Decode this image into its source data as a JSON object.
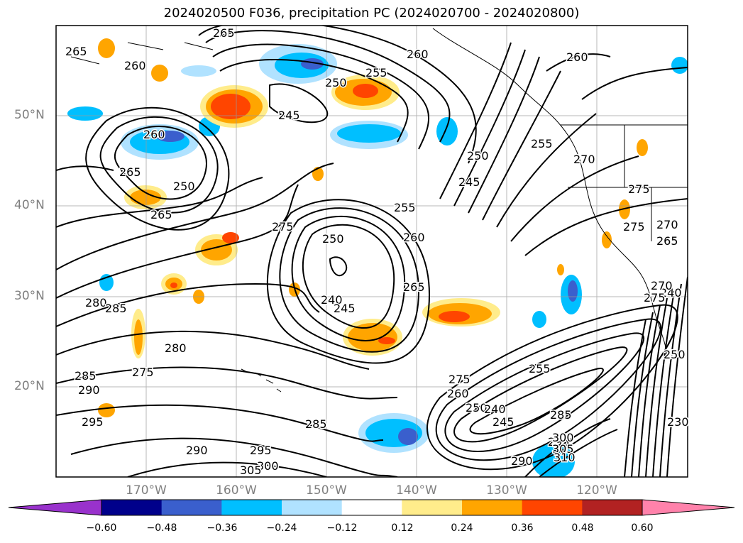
{
  "title": "2024020500 F036, precipitation PC (2024020700 - 2024020800)",
  "lat_labels": [
    "50°N",
    "40°N",
    "30°N",
    "20°N"
  ],
  "lon_labels": [
    "170°W",
    "160°W",
    "150°W",
    "140°W",
    "130°W",
    "120°W"
  ],
  "colorbar": {
    "ticks": [
      "−0.60",
      "−0.48",
      "−0.36",
      "−0.24",
      "−0.12",
      "0.12",
      "0.24",
      "0.36",
      "0.48",
      "0.60"
    ],
    "colors": [
      "#9932cc",
      "#00008b",
      "#3a5fcd",
      "#00bfff",
      "#b0e2ff",
      "#ffffff",
      "#ffec8b",
      "#ffa500",
      "#ff4500",
      "#b22222",
      "#ff82ab"
    ]
  },
  "contour_labels": [
    "265",
    "260",
    "265",
    "250",
    "255",
    "260",
    "260",
    "245",
    "260",
    "255",
    "250",
    "265",
    "265",
    "270",
    "250",
    "245",
    "275",
    "250",
    "255",
    "260",
    "240",
    "245",
    "265",
    "275",
    "270",
    "275",
    "265",
    "280",
    "280",
    "285",
    "290",
    "295",
    "275",
    "285",
    "285",
    "290",
    "295",
    "300",
    "305",
    "275",
    "255",
    "260",
    "250",
    "240",
    "245",
    "285",
    "290",
    "295",
    "300",
    "305",
    "310",
    "240",
    "230",
    "250",
    "270",
    "275"
  ],
  "map_extent": {
    "lon_min": -180,
    "lon_max": -110,
    "lat_min": 10,
    "lat_max": 60
  }
}
